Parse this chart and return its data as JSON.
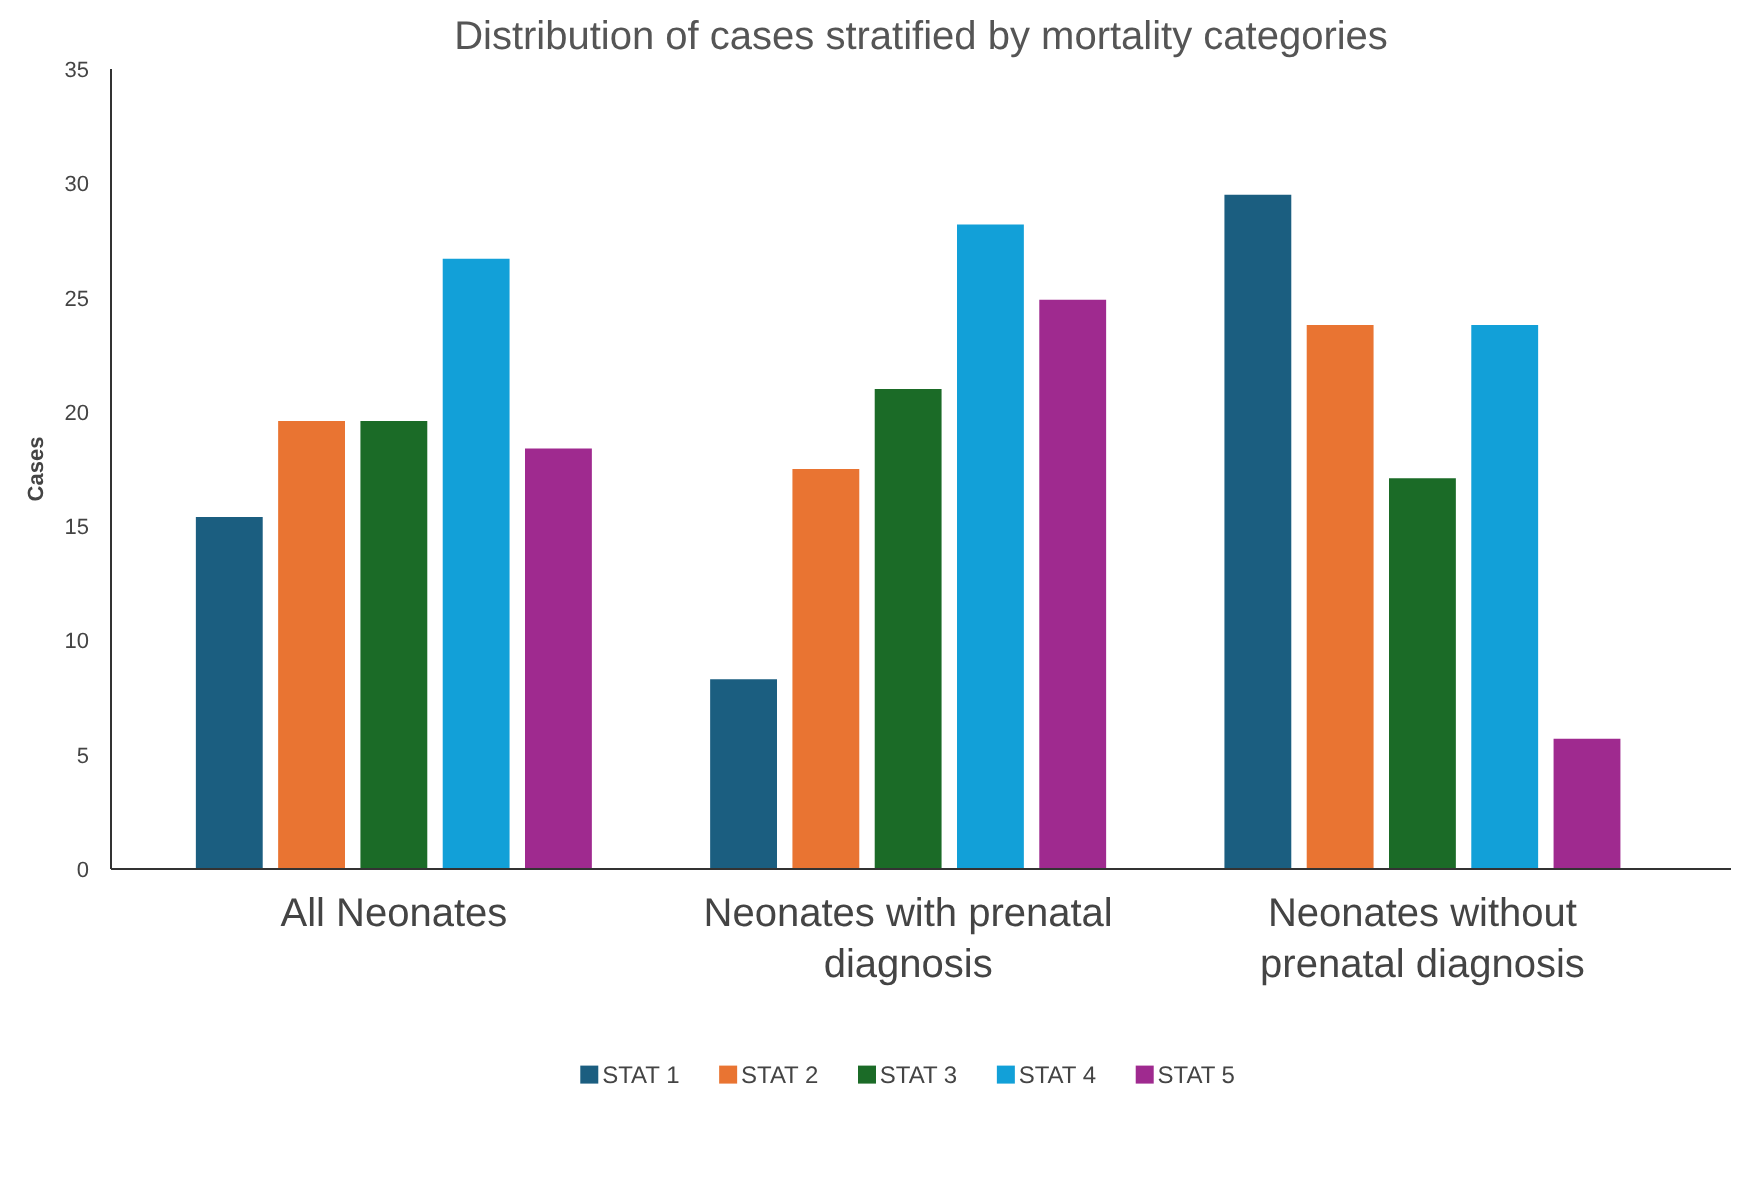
{
  "chart_data": {
    "type": "bar",
    "title": "Distribution of cases stratified by mortality categories",
    "ylabel": "Cases",
    "categories": [
      "All Neonates",
      "Neonates with prenatal diagnosis",
      "Neonates without prenatal diagnosis"
    ],
    "series": [
      {
        "name": "STAT 1",
        "color": "#1b5e80",
        "values": [
          15.4,
          8.3,
          29.5
        ]
      },
      {
        "name": "STAT 2",
        "color": "#e97432",
        "values": [
          19.6,
          17.5,
          23.8
        ]
      },
      {
        "name": "STAT 3",
        "color": "#1b6b27",
        "values": [
          19.6,
          21.0,
          17.1
        ]
      },
      {
        "name": "STAT 4",
        "color": "#12a0d8",
        "values": [
          26.7,
          28.2,
          23.8
        ]
      },
      {
        "name": "STAT 5",
        "color": "#9f2a8f",
        "values": [
          18.4,
          24.9,
          5.7
        ]
      }
    ],
    "ylim": [
      0,
      35
    ],
    "yticks": [
      0,
      5,
      10,
      15,
      20,
      25,
      30,
      35
    ],
    "grid": false,
    "legend": "bottom"
  }
}
